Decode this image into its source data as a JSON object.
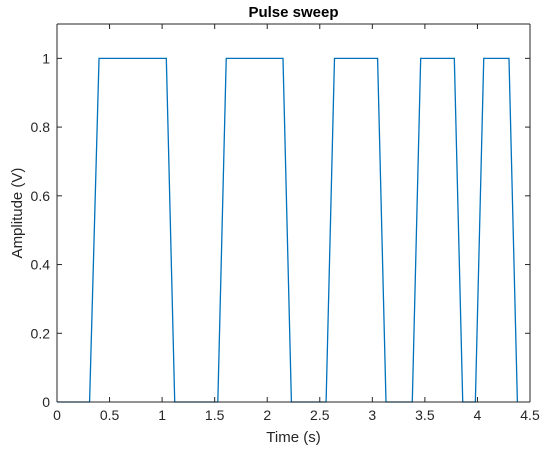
{
  "chart_data": {
    "type": "line",
    "title": "Pulse sweep",
    "xlabel": "Time (s)",
    "ylabel": "Amplitude (V)",
    "xlim": [
      0,
      4.5
    ],
    "ylim": [
      0,
      1.1
    ],
    "xticks": [
      0,
      0.5,
      1,
      1.5,
      2,
      2.5,
      3,
      3.5,
      4,
      4.5
    ],
    "xtick_labels": [
      "0",
      "0.5",
      "1",
      "1.5",
      "2",
      "2.5",
      "3",
      "3.5",
      "4",
      "4.5"
    ],
    "yticks": [
      0,
      0.2,
      0.4,
      0.6,
      0.8,
      1
    ],
    "ytick_labels": [
      "0",
      "0.2",
      "0.4",
      "0.6",
      "0.8",
      "1"
    ],
    "grid": false,
    "legend": "none",
    "series": [
      {
        "color": "#0072BD",
        "x": [
          0,
          0.31,
          0.4,
          1.04,
          1.12,
          1.53,
          1.61,
          2.15,
          2.23,
          2.56,
          2.64,
          3.05,
          3.13,
          3.38,
          3.46,
          3.78,
          3.86,
          3.98,
          4.06,
          4.3,
          4.38
        ],
        "y": [
          0,
          0,
          1,
          1,
          0,
          0,
          1,
          1,
          0,
          0,
          1,
          1,
          0,
          0,
          1,
          1,
          0,
          0,
          1,
          1,
          0
        ]
      }
    ]
  }
}
